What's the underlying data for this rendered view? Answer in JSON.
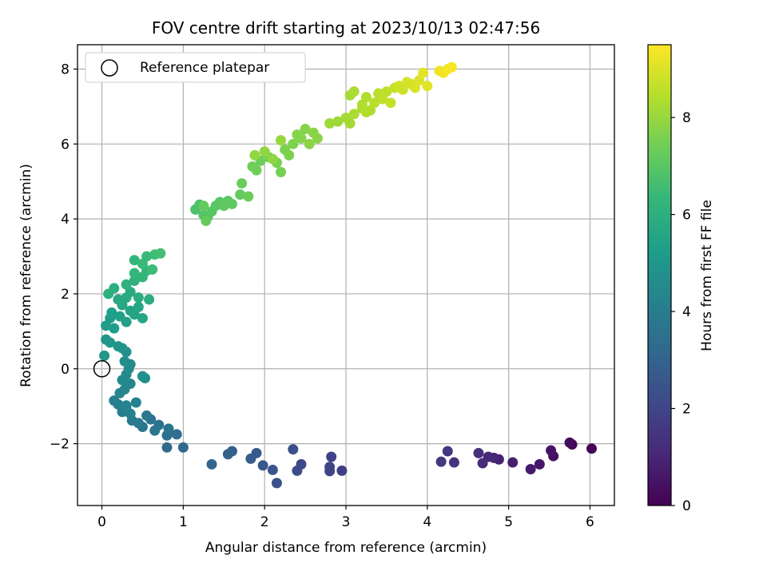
{
  "chart_data": {
    "type": "scatter",
    "title": "FOV centre drift starting at 2023/10/13 02:47:56",
    "xlabel": "Angular distance from reference (arcmin)",
    "ylabel": "Rotation from reference (arcmin)",
    "xlim": [
      -0.3,
      6.3
    ],
    "ylim": [
      -3.65,
      8.65
    ],
    "xticks": [
      0,
      1,
      2,
      3,
      4,
      5,
      6
    ],
    "yticks": [
      -2,
      0,
      2,
      4,
      6,
      8
    ],
    "grid": true,
    "colormap": "viridis",
    "colorbar": {
      "label": "Hours from first FF file",
      "range": [
        0,
        9.5
      ],
      "ticks": [
        0,
        2,
        4,
        6,
        8
      ]
    },
    "legend": {
      "position": "top-left",
      "entries": [
        "Reference platepar"
      ]
    },
    "reference_point": {
      "x": 0,
      "y": 0
    },
    "series": [
      {
        "points": [
          [
            6.02,
            -2.13,
            0.1
          ],
          [
            5.78,
            -2.02,
            0.2
          ],
          [
            5.75,
            -1.97,
            0.3
          ],
          [
            5.55,
            -2.33,
            0.4
          ],
          [
            5.52,
            -2.18,
            0.5
          ],
          [
            5.38,
            -2.55,
            0.6
          ],
          [
            5.27,
            -2.68,
            0.7
          ],
          [
            5.05,
            -2.5,
            0.8
          ],
          [
            4.88,
            -2.42,
            0.9
          ],
          [
            4.82,
            -2.38,
            1.0
          ],
          [
            4.75,
            -2.35,
            1.1
          ],
          [
            4.68,
            -2.52,
            1.2
          ],
          [
            4.63,
            -2.25,
            1.3
          ],
          [
            4.33,
            -2.5,
            1.4
          ],
          [
            4.25,
            -2.2,
            1.5
          ],
          [
            4.17,
            -2.48,
            1.6
          ],
          [
            2.95,
            -2.72,
            1.8
          ],
          [
            2.82,
            -2.35,
            1.9
          ],
          [
            2.8,
            -2.62,
            2.0
          ],
          [
            2.8,
            -2.73,
            2.0
          ],
          [
            2.45,
            -2.55,
            2.1
          ],
          [
            2.4,
            -2.72,
            2.2
          ],
          [
            2.35,
            -2.15,
            2.3
          ],
          [
            2.15,
            -3.05,
            2.4
          ],
          [
            2.1,
            -2.7,
            2.5
          ],
          [
            1.98,
            -2.58,
            2.6
          ],
          [
            1.9,
            -2.25,
            2.7
          ],
          [
            1.83,
            -2.4,
            2.8
          ],
          [
            1.6,
            -2.2,
            2.9
          ],
          [
            1.55,
            -2.28,
            3.0
          ],
          [
            1.35,
            -2.55,
            3.1
          ],
          [
            1.0,
            -2.1,
            3.2
          ],
          [
            0.8,
            -2.1,
            3.3
          ],
          [
            0.92,
            -1.75,
            3.4
          ],
          [
            0.8,
            -1.78,
            3.5
          ],
          [
            0.82,
            -1.6,
            3.6
          ],
          [
            0.7,
            -1.5,
            3.6
          ],
          [
            0.65,
            -1.65,
            3.7
          ],
          [
            0.6,
            -1.35,
            3.7
          ],
          [
            0.55,
            -1.25,
            3.8
          ],
          [
            0.5,
            -1.55,
            3.8
          ],
          [
            0.45,
            -1.45,
            3.9
          ],
          [
            0.37,
            -1.38,
            3.9
          ],
          [
            0.3,
            -1.08,
            4.0
          ],
          [
            0.25,
            -1.15,
            4.0
          ],
          [
            0.2,
            -0.95,
            4.1
          ],
          [
            0.15,
            -0.85,
            4.1
          ],
          [
            0.35,
            -1.2,
            4.2
          ],
          [
            0.42,
            -0.9,
            4.2
          ],
          [
            0.3,
            -0.98,
            4.3
          ],
          [
            0.22,
            -0.65,
            4.3
          ],
          [
            0.28,
            -0.55,
            4.4
          ],
          [
            0.35,
            -0.4,
            4.4
          ],
          [
            0.25,
            -0.3,
            4.5
          ],
          [
            0.3,
            -0.15,
            4.5
          ],
          [
            0.33,
            0.0,
            4.6
          ],
          [
            0.35,
            0.12,
            4.6
          ],
          [
            0.28,
            0.2,
            4.7
          ],
          [
            0.5,
            -0.2,
            4.7
          ],
          [
            0.53,
            -0.25,
            4.8
          ],
          [
            0.3,
            0.45,
            4.8
          ],
          [
            0.25,
            0.55,
            4.9
          ],
          [
            0.2,
            0.6,
            4.9
          ],
          [
            0.1,
            0.7,
            5.0
          ],
          [
            0.05,
            0.78,
            5.0
          ],
          [
            0.03,
            0.35,
            5.0
          ],
          [
            0.05,
            1.15,
            5.2
          ],
          [
            0.1,
            1.35,
            5.2
          ],
          [
            0.15,
            1.08,
            5.3
          ],
          [
            0.12,
            1.5,
            5.3
          ],
          [
            0.22,
            1.4,
            5.4
          ],
          [
            0.3,
            1.25,
            5.4
          ],
          [
            0.35,
            1.55,
            5.5
          ],
          [
            0.4,
            1.45,
            5.5
          ],
          [
            0.45,
            1.65,
            5.6
          ],
          [
            0.5,
            1.35,
            5.6
          ],
          [
            0.25,
            1.7,
            5.7
          ],
          [
            0.2,
            1.85,
            5.7
          ],
          [
            0.3,
            1.9,
            5.8
          ],
          [
            0.35,
            2.05,
            5.8
          ],
          [
            0.45,
            1.9,
            5.9
          ],
          [
            0.58,
            1.85,
            5.9
          ],
          [
            0.15,
            2.15,
            6.0
          ],
          [
            0.08,
            2.0,
            6.0
          ],
          [
            0.3,
            2.25,
            6.1
          ],
          [
            0.4,
            2.35,
            6.1
          ],
          [
            0.5,
            2.45,
            6.2
          ],
          [
            0.55,
            2.62,
            6.2
          ],
          [
            0.4,
            2.55,
            6.3
          ],
          [
            0.4,
            2.9,
            6.3
          ],
          [
            0.5,
            2.8,
            6.4
          ],
          [
            0.55,
            3.0,
            6.4
          ],
          [
            0.62,
            2.65,
            6.5
          ],
          [
            0.65,
            3.05,
            6.5
          ],
          [
            0.72,
            3.08,
            6.6
          ],
          [
            1.15,
            4.25,
            6.8
          ],
          [
            1.2,
            4.38,
            6.8
          ],
          [
            1.25,
            4.1,
            6.9
          ],
          [
            1.3,
            4.05,
            6.9
          ],
          [
            1.35,
            4.2,
            7.0
          ],
          [
            1.4,
            4.35,
            7.0
          ],
          [
            1.45,
            4.45,
            7.0
          ],
          [
            1.5,
            4.35,
            7.1
          ],
          [
            1.55,
            4.48,
            7.1
          ],
          [
            1.6,
            4.4,
            7.1
          ],
          [
            1.28,
            3.95,
            7.2
          ],
          [
            1.25,
            4.35,
            7.2
          ],
          [
            1.7,
            4.65,
            7.2
          ],
          [
            1.8,
            4.6,
            7.3
          ],
          [
            1.72,
            4.95,
            7.3
          ],
          [
            1.85,
            5.4,
            7.4
          ],
          [
            1.9,
            5.3,
            7.4
          ],
          [
            1.95,
            5.55,
            7.4
          ],
          [
            2.05,
            5.65,
            7.5
          ],
          [
            2.15,
            5.5,
            7.5
          ],
          [
            2.2,
            5.25,
            7.5
          ],
          [
            2.25,
            5.85,
            7.6
          ],
          [
            2.3,
            5.7,
            7.6
          ],
          [
            2.35,
            6.0,
            7.6
          ],
          [
            2.4,
            6.25,
            7.7
          ],
          [
            2.45,
            6.15,
            7.7
          ],
          [
            2.5,
            6.4,
            7.7
          ],
          [
            2.55,
            6.0,
            7.8
          ],
          [
            2.6,
            6.3,
            7.8
          ],
          [
            2.65,
            6.15,
            7.8
          ],
          [
            1.88,
            5.7,
            7.9
          ],
          [
            2.0,
            5.8,
            7.9
          ],
          [
            2.1,
            5.6,
            7.9
          ],
          [
            2.2,
            6.1,
            8.0
          ],
          [
            2.8,
            6.55,
            8.1
          ],
          [
            2.9,
            6.6,
            8.1
          ],
          [
            3.0,
            6.7,
            8.2
          ],
          [
            3.05,
            6.55,
            8.2
          ],
          [
            3.1,
            6.8,
            8.3
          ],
          [
            3.2,
            6.95,
            8.3
          ],
          [
            3.25,
            7.25,
            8.4
          ],
          [
            3.3,
            6.9,
            8.4
          ],
          [
            3.35,
            7.1,
            8.5
          ],
          [
            3.4,
            7.35,
            8.5
          ],
          [
            3.45,
            7.2,
            8.6
          ],
          [
            3.5,
            7.4,
            8.6
          ],
          [
            3.55,
            7.1,
            8.7
          ],
          [
            3.6,
            7.5,
            8.7
          ],
          [
            3.65,
            7.55,
            8.8
          ],
          [
            3.7,
            7.45,
            8.8
          ],
          [
            3.75,
            7.65,
            8.9
          ],
          [
            3.8,
            7.6,
            8.9
          ],
          [
            3.85,
            7.5,
            9.0
          ],
          [
            3.9,
            7.7,
            9.0
          ],
          [
            3.95,
            7.9,
            9.1
          ],
          [
            4.0,
            7.55,
            9.1
          ],
          [
            3.05,
            7.3,
            8.2
          ],
          [
            3.1,
            7.4,
            8.3
          ],
          [
            3.2,
            7.05,
            8.4
          ],
          [
            3.25,
            6.85,
            8.4
          ],
          [
            4.15,
            7.95,
            9.3
          ],
          [
            4.2,
            7.9,
            9.3
          ],
          [
            4.25,
            8.0,
            9.4
          ],
          [
            4.3,
            8.05,
            9.4
          ]
        ]
      }
    ]
  }
}
